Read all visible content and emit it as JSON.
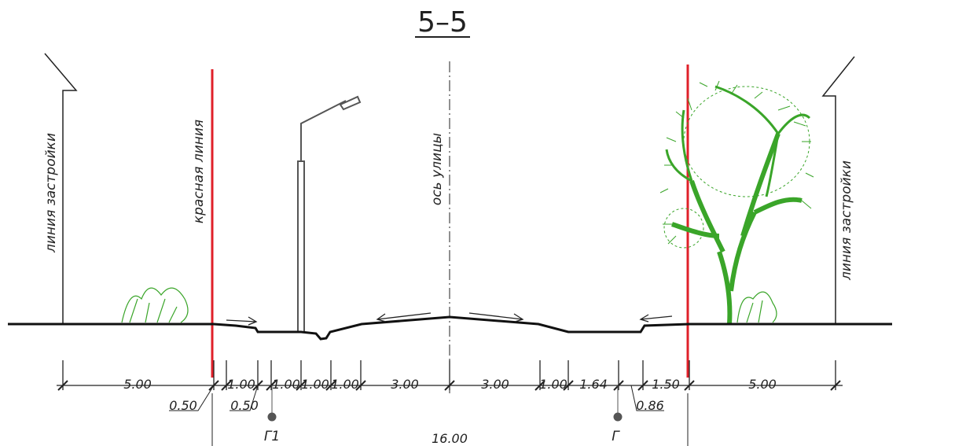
{
  "title": "5–5",
  "labels": {
    "building_line_left": "линия застройки",
    "red_line": "красная линия",
    "street_axis": "ось улицы",
    "building_line_right": "линия застройки"
  },
  "dimensions": [
    "5.00",
    "1.00",
    "1.00",
    "1.00",
    "1.00",
    "3.00",
    "3.00",
    "1.00",
    "1.64",
    "1.50",
    "5.00"
  ],
  "small_dimensions": [
    "0.50",
    "0.50",
    "0.86"
  ],
  "total": "16.00",
  "markers": [
    "Г1",
    "Г"
  ]
}
